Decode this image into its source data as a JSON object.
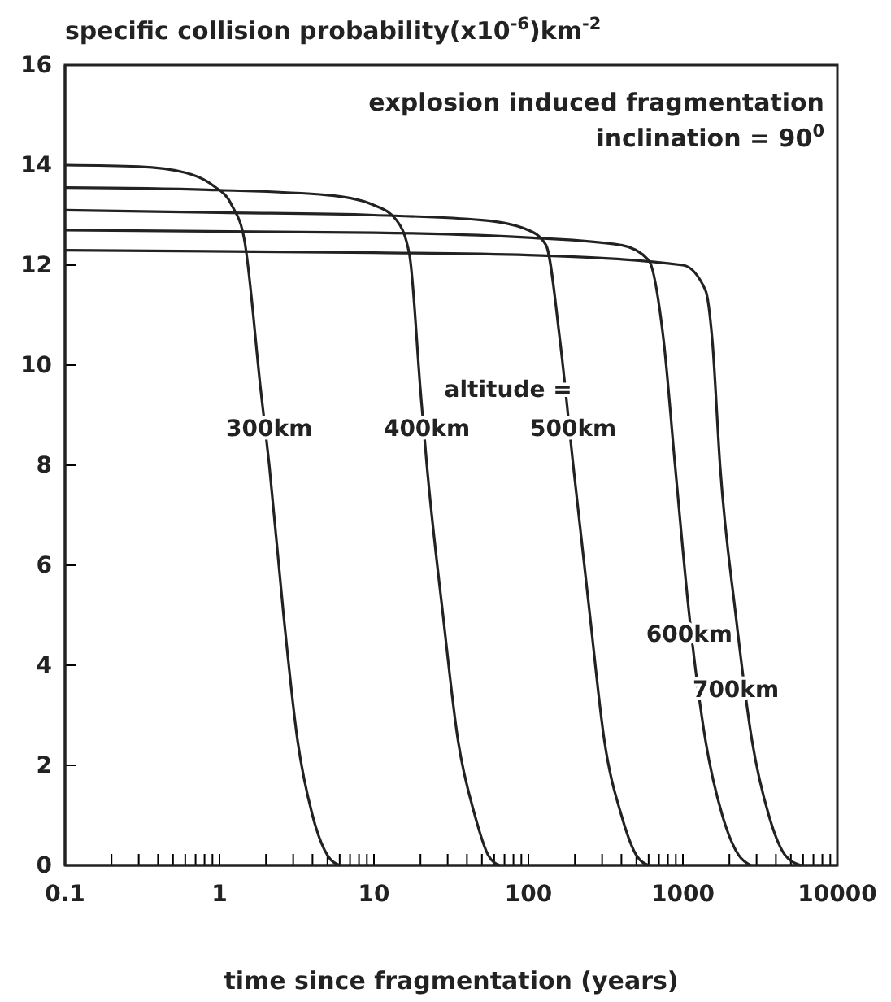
{
  "chart_data": {
    "type": "line",
    "ylabel": "specific collision probability(x10$^{-6}$)km$^{-2}$",
    "xlabel": "time since fragmentation (years)",
    "log": "x",
    "xlim": [
      0.1,
      10000
    ],
    "ylim": [
      0,
      16
    ],
    "xticks": [
      0.1,
      {
        "value": 0.2,
        "label": null
      },
      {
        "value": 0.3,
        "label": null
      },
      {
        "value": 0.4,
        "label": null
      },
      {
        "value": 0.5,
        "label": null
      },
      {
        "value": 0.6,
        "label": null
      },
      {
        "value": 0.7,
        "label": null
      },
      {
        "value": 0.8,
        "label": null
      },
      {
        "value": 0.9,
        "label": null
      },
      1,
      {
        "value": 2,
        "label": null
      },
      {
        "value": 3,
        "label": null
      },
      {
        "value": 4,
        "label": null
      },
      {
        "value": 5,
        "label": null
      },
      {
        "value": 6,
        "label": null
      },
      {
        "value": 7,
        "label": null
      },
      {
        "value": 8,
        "label": null
      },
      {
        "value": 9,
        "label": null
      },
      10,
      {
        "value": 20,
        "label": null
      },
      {
        "value": 30,
        "label": null
      },
      {
        "value": 40,
        "label": null
      },
      {
        "value": 50,
        "label": null
      },
      {
        "value": 60,
        "label": null
      },
      {
        "value": 70,
        "label": null
      },
      {
        "value": 80,
        "label": null
      },
      {
        "value": 90,
        "label": null
      },
      100,
      {
        "value": 200,
        "label": null
      },
      {
        "value": 300,
        "label": null
      },
      {
        "value": 400,
        "label": null
      },
      {
        "value": 500,
        "label": null
      },
      {
        "value": 600,
        "label": null
      },
      {
        "value": 700,
        "label": null
      },
      {
        "value": 800,
        "label": null
      },
      {
        "value": 900,
        "label": null
      },
      1000,
      {
        "value": 2000,
        "label": null
      },
      {
        "value": 3000,
        "label": null
      },
      {
        "value": 4000,
        "label": null
      },
      {
        "value": 5000,
        "label": null
      },
      {
        "value": 6000,
        "label": null
      },
      {
        "value": 7000,
        "label": null
      },
      {
        "value": 8000,
        "label": null
      },
      {
        "value": 9000,
        "label": null
      },
      10000
    ],
    "yticks": [
      0,
      2,
      4,
      6,
      8,
      10,
      12,
      14,
      16
    ],
    "grid": false,
    "marker": "none",
    "line_style": "solid",
    "series": [
      {
        "name": "300km",
        "color": "#222222",
        "x": [
          0.1,
          0.3,
          0.6,
          0.9,
          1.2,
          1.45,
          1.85,
          2.1,
          2.6,
          3.2,
          4,
          5,
          6
        ],
        "values": [
          14.0,
          13.97,
          13.85,
          13.6,
          13.2,
          12.5,
          9.5,
          8,
          5,
          2.5,
          1,
          0.2,
          0
        ]
      },
      {
        "name": "400km",
        "color": "#222222",
        "x": [
          0.1,
          1,
          5,
          10,
          14,
          17,
          20,
          22,
          28,
          35,
          45,
          55,
          65
        ],
        "values": [
          13.55,
          13.5,
          13.4,
          13.2,
          12.9,
          12.2,
          9.5,
          8,
          5,
          2.5,
          1,
          0.2,
          0
        ]
      },
      {
        "name": "500km",
        "color": "#222222",
        "x": [
          0.1,
          1,
          10,
          50,
          100,
          130,
          160,
          195,
          250,
          310,
          400,
          500,
          600
        ],
        "values": [
          13.1,
          13.05,
          13.0,
          12.9,
          12.7,
          12.4,
          10.5,
          8,
          5,
          2.5,
          1,
          0.2,
          0
        ]
      },
      {
        "name": "600km",
        "color": "#222222",
        "x": [
          0.1,
          10,
          100,
          400,
          600,
          750,
          890,
          1100,
          1400,
          1800,
          2300,
          2750
        ],
        "values": [
          12.7,
          12.65,
          12.55,
          12.4,
          12.1,
          10.5,
          8,
          5,
          2.5,
          1,
          0.2,
          0
        ]
      },
      {
        "name": "700km",
        "color": "#222222",
        "x": [
          0.1,
          10,
          100,
          1000,
          1400,
          1550,
          1740,
          2200,
          2800,
          3600,
          4600,
          5800
        ],
        "values": [
          12.3,
          12.25,
          12.2,
          12.0,
          11.5,
          10.5,
          8,
          5,
          2.5,
          1,
          0.2,
          0
        ]
      }
    ],
    "annotations": [
      "explosion induced fragmentation",
      "inclination = 90$^{0}$",
      "altitude ="
    ]
  }
}
